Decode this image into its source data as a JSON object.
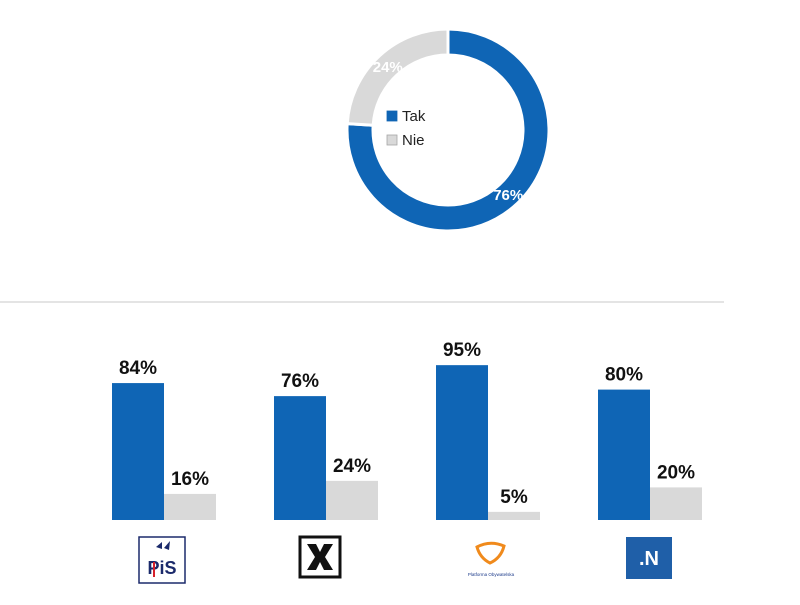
{
  "colors": {
    "tak": "#0f65b5",
    "nie": "#d9d9d9",
    "label_dark": "#111111",
    "label_light": "#ffffff",
    "divider": "#c8c8c8",
    "pis_red": "#d6202b",
    "po_orange": "#f08a1c",
    "n_blue": "#1f5fa8"
  },
  "chart_data": [
    {
      "type": "pie",
      "variant": "donut",
      "legend_position": "center",
      "slices": [
        {
          "name": "Tak",
          "value": 76,
          "label": "76%"
        },
        {
          "name": "Nie",
          "value": 24,
          "label": "24%"
        }
      ]
    },
    {
      "type": "bar",
      "categories": [
        "PiS",
        "Kukiz'15",
        "Platforma Obywatelska",
        "Nowoczesna"
      ],
      "series": [
        {
          "name": "Tak",
          "values": [
            84,
            76,
            95,
            80
          ],
          "labels": [
            "84%",
            "76%",
            "95%",
            "80%"
          ]
        },
        {
          "name": "Nie",
          "values": [
            16,
            24,
            5,
            20
          ],
          "labels": [
            "16%",
            "24%",
            "5%",
            "20%"
          ]
        }
      ],
      "ylim": [
        0,
        100
      ]
    }
  ],
  "logos": {
    "pis": {
      "icon": "pis-logo-icon",
      "text": "PiS"
    },
    "kukiz": {
      "icon": "kukiz-logo-icon",
      "text": ""
    },
    "po": {
      "icon": "po-logo-icon",
      "text": "Platforma Obywatelska"
    },
    "n": {
      "icon": "nowoczesna-logo-icon",
      "text": ".N"
    }
  }
}
